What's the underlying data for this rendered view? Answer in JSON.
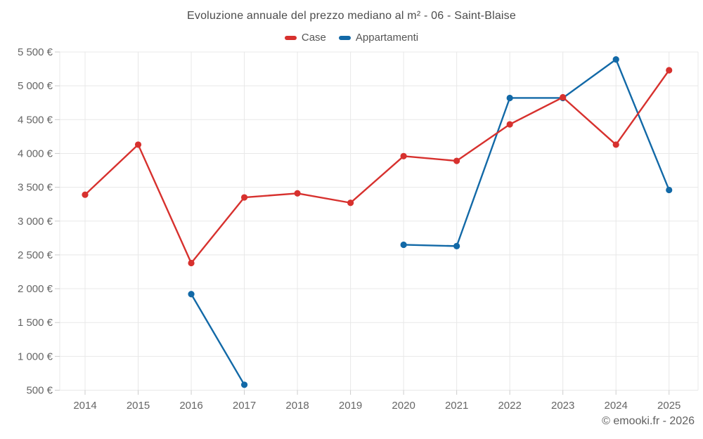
{
  "page": {
    "title": "Evoluzione annuale del prezzo mediano al m² - 06 - Saint-Blaise",
    "footer": "© emooki.fr - 2026"
  },
  "legend": {
    "items": [
      {
        "label": "Case",
        "color": "#d7312e"
      },
      {
        "label": "Appartamenti",
        "color": "#1269a7"
      }
    ]
  },
  "chart_data": {
    "type": "line",
    "title": "Evoluzione annuale del prezzo mediano al m² - 06 - Saint-Blaise",
    "xlabel": "",
    "ylabel": "",
    "categories": [
      "2014",
      "2015",
      "2016",
      "2017",
      "2018",
      "2019",
      "2020",
      "2021",
      "2022",
      "2023",
      "2024",
      "2025"
    ],
    "series": [
      {
        "name": "Case",
        "color": "#d7312e",
        "values": [
          3390,
          4130,
          2380,
          3350,
          3410,
          3270,
          3960,
          3890,
          4430,
          4830,
          4130,
          5230
        ]
      },
      {
        "name": "Appartamenti",
        "color": "#1269a7",
        "values": [
          null,
          null,
          1920,
          580,
          null,
          null,
          2650,
          2630,
          4820,
          4820,
          5390,
          3460
        ]
      }
    ],
    "ylim": [
      500,
      5500
    ],
    "ytick_step": 500,
    "ytick_labels": [
      "500 €",
      "1 000 €",
      "1 500 €",
      "2 000 €",
      "2 500 €",
      "3 000 €",
      "3 500 €",
      "4 000 €",
      "4 500 €",
      "5 000 €",
      "5 500 €"
    ],
    "grid": true,
    "legend_position": "top",
    "currency_unit": "€",
    "colors": {
      "grid": "#e8e8e8",
      "tick": "#cccccc",
      "axis_text": "#666666",
      "title_text": "#4c4c4c"
    }
  }
}
